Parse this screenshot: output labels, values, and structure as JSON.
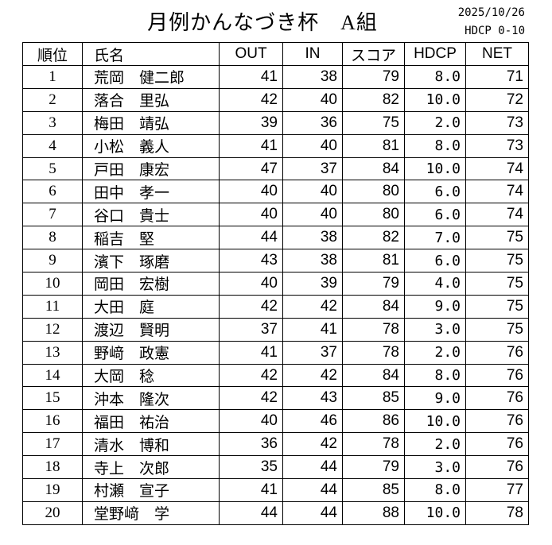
{
  "header": {
    "title": "月例かんなづき杯　A組",
    "date": "2025/10/26",
    "hdcp_range": "HDCP 0-10"
  },
  "table": {
    "columns": [
      "順位",
      "氏名",
      "OUT",
      "IN",
      "スコア",
      "HDCP",
      "NET"
    ],
    "rows": [
      [
        "1",
        "荒岡　健二郎",
        "41",
        "38",
        "79",
        "8.0",
        "71"
      ],
      [
        "2",
        "落合　里弘",
        "42",
        "40",
        "82",
        "10.0",
        "72"
      ],
      [
        "3",
        "梅田　靖弘",
        "39",
        "36",
        "75",
        "2.0",
        "73"
      ],
      [
        "4",
        "小松　義人",
        "41",
        "40",
        "81",
        "8.0",
        "73"
      ],
      [
        "5",
        "戸田　康宏",
        "47",
        "37",
        "84",
        "10.0",
        "74"
      ],
      [
        "6",
        "田中　孝一",
        "40",
        "40",
        "80",
        "6.0",
        "74"
      ],
      [
        "7",
        "谷口　貴士",
        "40",
        "40",
        "80",
        "6.0",
        "74"
      ],
      [
        "8",
        "稲吉　堅",
        "44",
        "38",
        "82",
        "7.0",
        "75"
      ],
      [
        "9",
        "濱下　琢磨",
        "43",
        "38",
        "81",
        "6.0",
        "75"
      ],
      [
        "10",
        "岡田　宏樹",
        "40",
        "39",
        "79",
        "4.0",
        "75"
      ],
      [
        "11",
        "大田　庭",
        "42",
        "42",
        "84",
        "9.0",
        "75"
      ],
      [
        "12",
        "渡辺　賢明",
        "37",
        "41",
        "78",
        "3.0",
        "75"
      ],
      [
        "13",
        "野﨑　政憲",
        "41",
        "37",
        "78",
        "2.0",
        "76"
      ],
      [
        "14",
        "大岡　稔",
        "42",
        "42",
        "84",
        "8.0",
        "76"
      ],
      [
        "15",
        "沖本　隆次",
        "42",
        "43",
        "85",
        "9.0",
        "76"
      ],
      [
        "16",
        "福田　祐治",
        "40",
        "46",
        "86",
        "10.0",
        "76"
      ],
      [
        "17",
        "清水　博和",
        "36",
        "42",
        "78",
        "2.0",
        "76"
      ],
      [
        "18",
        "寺上　次郎",
        "35",
        "44",
        "79",
        "3.0",
        "76"
      ],
      [
        "19",
        "村瀬　宣子",
        "41",
        "44",
        "85",
        "8.0",
        "77"
      ],
      [
        "20",
        "堂野﨑　学",
        "44",
        "44",
        "88",
        "10.0",
        "78"
      ]
    ]
  }
}
